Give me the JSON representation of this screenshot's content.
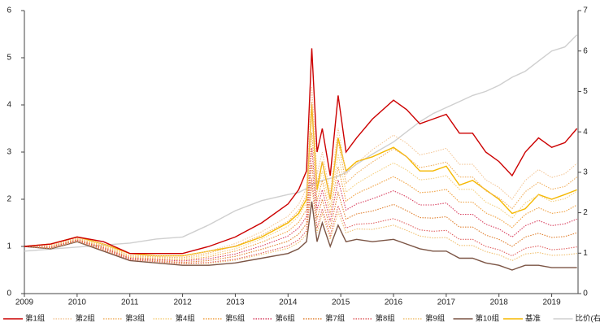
{
  "chart_data": {
    "type": "line",
    "x": [
      2009,
      2009.5,
      2010,
      2010.5,
      2011,
      2011.5,
      2012,
      2012.5,
      2013,
      2013.5,
      2014,
      2014.2,
      2014.35,
      2014.45,
      2014.55,
      2014.65,
      2014.8,
      2014.95,
      2015.1,
      2015.3,
      2015.6,
      2016,
      2016.25,
      2016.5,
      2016.75,
      2017,
      2017.25,
      2017.5,
      2017.75,
      2018,
      2018.25,
      2018.5,
      2018.75,
      2019,
      2019.25,
      2019.48
    ],
    "xlim": [
      2009,
      2019.5
    ],
    "xticks": [
      2009,
      2010,
      2011,
      2012,
      2013,
      2014,
      2015,
      2016,
      2017,
      2018,
      2019
    ],
    "ylim": [
      0,
      6
    ],
    "yticks": [
      0,
      1,
      2,
      3,
      4,
      5,
      6
    ],
    "y2lim": [
      0,
      7
    ],
    "y2ticks": [
      0,
      1,
      2,
      3,
      4,
      5,
      6,
      7
    ],
    "series": [
      {
        "name": "第1组",
        "color": "#cc0000",
        "style": "solid",
        "values": [
          1.0,
          1.05,
          1.2,
          1.1,
          0.85,
          0.85,
          0.85,
          1.0,
          1.2,
          1.5,
          1.9,
          2.2,
          2.6,
          5.2,
          3.0,
          3.5,
          2.5,
          4.2,
          3.0,
          3.3,
          3.7,
          4.1,
          3.9,
          3.6,
          3.7,
          3.8,
          3.4,
          3.4,
          3.0,
          2.8,
          2.5,
          3.0,
          3.3,
          3.1,
          3.2,
          3.5
        ]
      },
      {
        "name": "第2组",
        "color": "#f4c89a",
        "style": "dotted",
        "values": [
          1.0,
          1.03,
          1.18,
          1.05,
          0.81,
          0.8,
          0.79,
          0.9,
          1.06,
          1.31,
          1.64,
          1.89,
          2.23,
          4.39,
          2.53,
          3.0,
          2.13,
          3.51,
          2.53,
          2.76,
          3.05,
          3.36,
          3.19,
          2.94,
          3.0,
          3.08,
          2.74,
          2.74,
          2.41,
          2.25,
          2.0,
          2.4,
          2.63,
          2.46,
          2.54,
          2.76
        ]
      },
      {
        "name": "第3组",
        "color": "#f0b060",
        "style": "dotted",
        "values": [
          1.0,
          1.02,
          1.17,
          1.03,
          0.8,
          0.78,
          0.76,
          0.86,
          1.01,
          1.24,
          1.53,
          1.76,
          2.08,
          4.06,
          2.34,
          2.8,
          1.98,
          3.24,
          2.34,
          2.55,
          2.79,
          3.07,
          2.9,
          2.67,
          2.72,
          2.79,
          2.47,
          2.47,
          2.18,
          2.03,
          1.8,
          2.16,
          2.36,
          2.21,
          2.27,
          2.47
        ]
      },
      {
        "name": "第4组",
        "color": "#f5d080",
        "style": "dotted",
        "values": [
          1.0,
          1.01,
          1.16,
          1.01,
          0.78,
          0.76,
          0.74,
          0.82,
          0.95,
          1.16,
          1.43,
          1.64,
          1.93,
          3.74,
          2.15,
          2.6,
          1.83,
          2.96,
          2.15,
          2.33,
          2.53,
          2.77,
          2.62,
          2.41,
          2.44,
          2.5,
          2.21,
          2.21,
          1.94,
          1.81,
          1.6,
          1.92,
          2.09,
          1.95,
          2.01,
          2.17
        ]
      },
      {
        "name": "第5组",
        "color": "#f0a040",
        "style": "dotted",
        "values": [
          1.0,
          1.0,
          1.15,
          0.99,
          0.77,
          0.74,
          0.71,
          0.78,
          0.9,
          1.09,
          1.32,
          1.51,
          1.78,
          3.41,
          1.96,
          2.4,
          1.68,
          2.69,
          1.96,
          2.12,
          2.27,
          2.48,
          2.33,
          2.14,
          2.16,
          2.21,
          1.94,
          1.94,
          1.71,
          1.59,
          1.4,
          1.68,
          1.82,
          1.7,
          1.74,
          1.88
        ]
      },
      {
        "name": "第6组",
        "color": "#d84060",
        "style": "dotted",
        "values": [
          1.0,
          0.99,
          1.14,
          0.97,
          0.75,
          0.72,
          0.69,
          0.74,
          0.84,
          1.01,
          1.22,
          1.39,
          1.63,
          3.09,
          1.77,
          2.2,
          1.53,
          2.41,
          1.77,
          1.9,
          2.01,
          2.18,
          2.05,
          1.88,
          1.88,
          1.92,
          1.68,
          1.68,
          1.47,
          1.37,
          1.2,
          1.44,
          1.55,
          1.44,
          1.48,
          1.58
        ]
      },
      {
        "name": "第7组",
        "color": "#e08030",
        "style": "dotted",
        "values": [
          1.0,
          0.98,
          1.13,
          0.95,
          0.74,
          0.7,
          0.66,
          0.7,
          0.79,
          0.94,
          1.11,
          1.26,
          1.48,
          2.76,
          1.58,
          2.0,
          1.38,
          2.14,
          1.58,
          1.69,
          1.75,
          1.89,
          1.76,
          1.61,
          1.6,
          1.63,
          1.41,
          1.41,
          1.24,
          1.15,
          1.0,
          1.2,
          1.28,
          1.19,
          1.21,
          1.29
        ]
      },
      {
        "name": "第8组",
        "color": "#e06060",
        "style": "dotted",
        "values": [
          1.0,
          0.97,
          1.12,
          0.93,
          0.72,
          0.68,
          0.64,
          0.66,
          0.73,
          0.86,
          1.01,
          1.14,
          1.33,
          2.44,
          1.39,
          1.8,
          1.23,
          1.86,
          1.39,
          1.47,
          1.49,
          1.59,
          1.48,
          1.35,
          1.32,
          1.34,
          1.15,
          1.15,
          1.0,
          0.93,
          0.8,
          0.96,
          1.01,
          0.93,
          0.95,
          0.99
        ]
      },
      {
        "name": "第9组",
        "color": "#f0c070",
        "style": "dotted",
        "values": [
          1.0,
          0.96,
          1.11,
          0.92,
          0.72,
          0.67,
          0.63,
          0.64,
          0.71,
          0.83,
          0.96,
          1.08,
          1.25,
          2.28,
          1.29,
          1.7,
          1.15,
          1.73,
          1.29,
          1.37,
          1.36,
          1.45,
          1.34,
          1.22,
          1.18,
          1.19,
          1.02,
          1.02,
          0.89,
          0.82,
          0.7,
          0.84,
          0.87,
          0.81,
          0.82,
          0.85
        ]
      },
      {
        "name": "第10组",
        "color": "#7b5444",
        "style": "solid",
        "values": [
          1.0,
          0.95,
          1.1,
          0.9,
          0.7,
          0.65,
          0.6,
          0.6,
          0.65,
          0.75,
          0.85,
          0.95,
          1.1,
          1.95,
          1.1,
          1.5,
          1.0,
          1.45,
          1.1,
          1.15,
          1.1,
          1.15,
          1.05,
          0.95,
          0.9,
          0.9,
          0.75,
          0.75,
          0.65,
          0.6,
          0.5,
          0.6,
          0.6,
          0.55,
          0.55,
          0.55
        ]
      },
      {
        "name": "基准",
        "color": "#f5b800",
        "style": "solid",
        "values": [
          1.0,
          1.05,
          1.2,
          1.05,
          0.85,
          0.8,
          0.8,
          0.9,
          1.0,
          1.2,
          1.5,
          1.7,
          2.0,
          4.0,
          2.2,
          2.8,
          2.0,
          3.3,
          2.6,
          2.8,
          2.9,
          3.1,
          2.9,
          2.6,
          2.6,
          2.7,
          2.3,
          2.4,
          2.2,
          2.0,
          1.7,
          1.8,
          2.1,
          2.0,
          2.1,
          2.2
        ]
      },
      {
        "name": "比价(右轴",
        "color": "#cfcfcf",
        "style": "solid",
        "axis": "y2",
        "values": [
          1.05,
          1.1,
          1.15,
          1.2,
          1.25,
          1.35,
          1.4,
          1.7,
          2.05,
          2.3,
          2.45,
          2.5,
          2.6,
          2.7,
          2.75,
          2.8,
          2.85,
          2.9,
          3.0,
          3.2,
          3.45,
          3.75,
          4.0,
          4.25,
          4.45,
          4.6,
          4.75,
          4.9,
          5.0,
          5.15,
          5.35,
          5.5,
          5.75,
          6.0,
          6.1,
          6.4
        ]
      }
    ]
  }
}
